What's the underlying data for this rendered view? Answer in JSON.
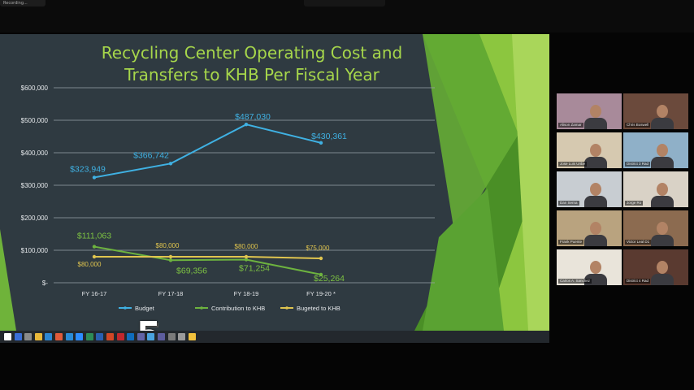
{
  "window": {
    "tab_label": "Recording..."
  },
  "slide": {
    "title_line1": "Recycling Center Operating Cost and",
    "title_line2": "Transfers to KHB Per Fiscal Year",
    "colors": {
      "background": "#2f3a41",
      "title": "#a6d64b",
      "accent_green": "#8cc63f"
    }
  },
  "chart_data": {
    "type": "line",
    "title": "Recycling Center Operating Cost and Transfers to KHB Per Fiscal Year",
    "categories": [
      "FY 16-17",
      "FY 17-18",
      "FY 18-19",
      "FY 19-20 *"
    ],
    "ytick_labels": [
      "$600,000",
      "$500,000",
      "$400,000",
      "$300,000",
      "$200,000",
      "$100,000",
      "$-"
    ],
    "ylim": [
      0,
      600000
    ],
    "grid": true,
    "legend_position": "bottom",
    "series": [
      {
        "name": "Budget",
        "color": "#3fb1e3",
        "values": [
          323949,
          366742,
          487030,
          430361
        ],
        "labels": [
          "$323,949",
          "$366,742",
          "$487,030",
          "$430,361"
        ]
      },
      {
        "name": "Contribution to KHB",
        "color": "#6db33f",
        "values": [
          111063,
          69356,
          71254,
          25264
        ],
        "labels": [
          "$111,063",
          "$69,356",
          "$71,254",
          "$25,264"
        ]
      },
      {
        "name": "Bugeted to KHB",
        "color": "#e0c54f",
        "values": [
          80000,
          80000,
          80000,
          75000
        ],
        "labels": [
          "$80,000",
          "$80,000",
          "$80,000",
          "$75,000"
        ]
      }
    ]
  },
  "overlay": {
    "station_logo": "5"
  },
  "taskbar": {
    "icons": [
      "start-icon",
      "search-icon",
      "task-view-icon",
      "folder-icon",
      "edge-icon",
      "chrome-icon",
      "mail-icon",
      "zoom-icon",
      "excel-icon",
      "word-icon",
      "powerpoint-icon",
      "acrobat-icon",
      "outlook-icon",
      "teams-icon",
      "photos-icon",
      "store-icon",
      "calculator-icon",
      "settings-icon",
      "explorer-icon"
    ]
  },
  "participants": [
    {
      "name": "Alison Zamar",
      "active": false
    },
    {
      "name": "Chris Boswell",
      "active": false
    },
    {
      "name": "Jose Luis Uribe",
      "active": false
    },
    {
      "name": "District 3 Rad",
      "active": false
    },
    {
      "name": "Dan Serna",
      "active": false
    },
    {
      "name": "Jorge Ro",
      "active": false
    },
    {
      "name": "Frank Puente",
      "active": false
    },
    {
      "name": "Victor Leal D1",
      "active": false
    },
    {
      "name": "Carlos A. Sanchez",
      "active": true
    },
    {
      "name": "District 4 Rad",
      "active": false
    }
  ]
}
